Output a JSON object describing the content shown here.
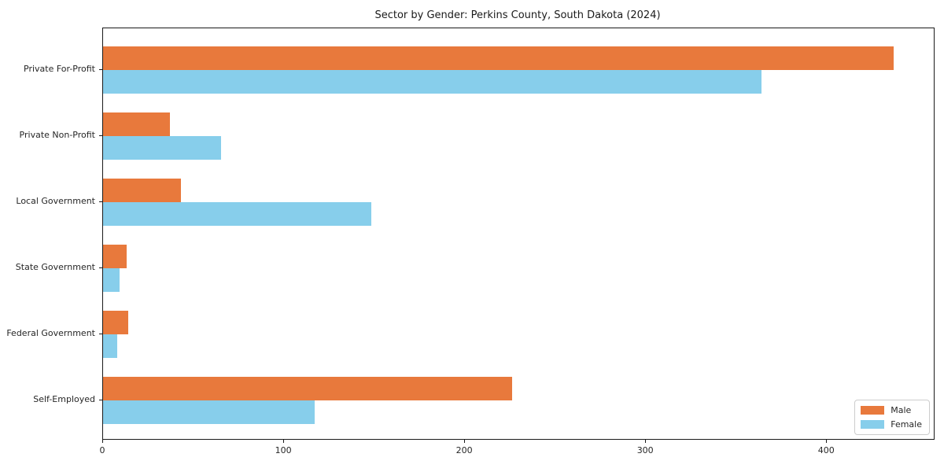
{
  "chart_data": {
    "type": "bar",
    "orientation": "horizontal",
    "title": "Sector by Gender: Perkins County, South Dakota (2024)",
    "categories": [
      "Private For-Profit",
      "Private Non-Profit",
      "Local Government",
      "State Government",
      "Federal Government",
      "Self-Employed"
    ],
    "series": [
      {
        "name": "Male",
        "color": "#E8793C",
        "values": [
          437,
          37,
          43,
          13,
          14,
          226
        ]
      },
      {
        "name": "Female",
        "color": "#87CEEB",
        "values": [
          364,
          65,
          148,
          9,
          8,
          117
        ]
      }
    ],
    "xlabel": "",
    "ylabel": "",
    "xlim": [
      0,
      459
    ],
    "x_ticks": [
      0,
      100,
      200,
      300,
      400
    ],
    "grid": false,
    "legend": {
      "position": "lower-right",
      "entries": [
        "Male",
        "Female"
      ]
    }
  }
}
